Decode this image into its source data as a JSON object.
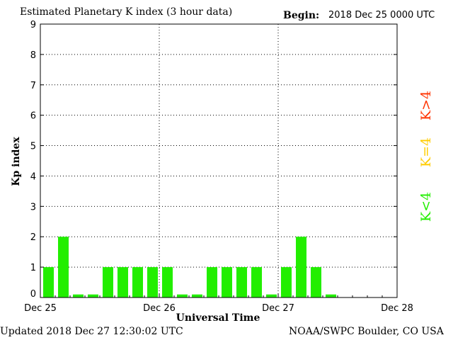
{
  "header": {
    "title": "Estimated Planetary K index (3 hour data)",
    "begin_label": "Begin:",
    "begin_value": "2018 Dec 25 0000 UTC"
  },
  "footer": {
    "updated": "Updated 2018 Dec 27 12:30:02 UTC",
    "credit": "NOAA/SWPC Boulder, CO USA"
  },
  "legend": {
    "high": {
      "text": "K>4",
      "color": "#ff3300"
    },
    "equal": {
      "text": "K=4",
      "color": "#ffcc00"
    },
    "low": {
      "text": "K<4",
      "color": "#22ee00"
    }
  },
  "chart_data": {
    "type": "bar",
    "ylabel": "Kp index",
    "xlabel": "Universal Time",
    "ylim": [
      0,
      9
    ],
    "yticks": [
      "0",
      "1",
      "2",
      "3",
      "4",
      "5",
      "6",
      "7",
      "8",
      "9"
    ],
    "xtick_labels": [
      "Dec 25",
      "Dec 26",
      "Dec 27",
      "Dec 28"
    ],
    "bin_hours": 3,
    "values": [
      1,
      2,
      0,
      0,
      1,
      1,
      1,
      1,
      1,
      0,
      0,
      1,
      1,
      1,
      1,
      0,
      1,
      2,
      1,
      0
    ],
    "bar_color": "#22ee00",
    "grid": true
  }
}
